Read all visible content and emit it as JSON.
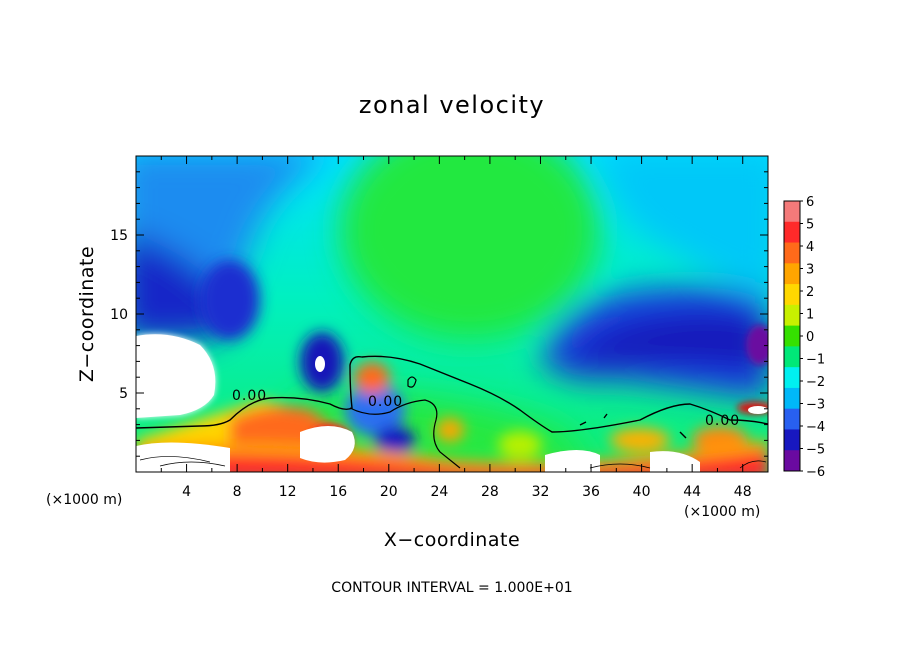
{
  "chart_data": {
    "type": "heatmap",
    "title": "zonal velocity",
    "xlabel": "X−coordinate",
    "ylabel": "Z−coordinate",
    "x_unit_left": "(×1000 m)",
    "x_unit_right": "(×1000 m)",
    "footer": "CONTOUR INTERVAL = 1.000E+01",
    "xlim": [
      0,
      50
    ],
    "ylim": [
      0,
      20
    ],
    "x_ticks": [
      4,
      8,
      12,
      16,
      20,
      24,
      28,
      32,
      36,
      40,
      44,
      48
    ],
    "x_tick_labels": [
      "4",
      "8",
      "12",
      "16",
      "20",
      "24",
      "28",
      "32",
      "36",
      "40",
      "44",
      "48"
    ],
    "y_ticks": [
      5,
      10,
      15
    ],
    "y_tick_labels": [
      "5",
      "10",
      "15"
    ],
    "colorbar": {
      "min": -6,
      "max": 6,
      "ticks": [
        "6",
        "5",
        "4",
        "3",
        "2",
        "1",
        "0",
        "−1",
        "−2",
        "−3",
        "−4",
        "−5",
        "−6"
      ],
      "colors": [
        "#f47a7a",
        "#ff2a2a",
        "#ff6a1a",
        "#ffa500",
        "#ffd800",
        "#c8f000",
        "#35e000",
        "#00e878",
        "#00f0f0",
        "#00b8f8",
        "#2860f0",
        "#1818c0",
        "#6a0aa0"
      ]
    },
    "contour_labels": [
      "0.00",
      "0.00",
      "0.00"
    ]
  }
}
